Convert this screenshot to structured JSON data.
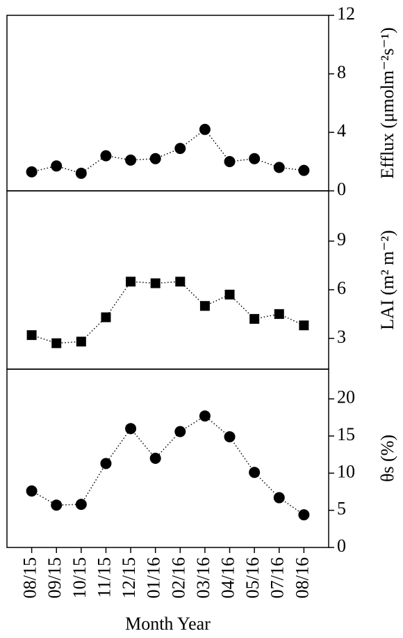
{
  "chart_data": [
    {
      "type": "line",
      "y_label": "Efflux (μmolm⁻²s⁻¹)",
      "marker": "circle",
      "color": "#000000",
      "values": [
        1.3,
        1.7,
        1.2,
        2.4,
        2.1,
        2.2,
        2.9,
        4.2,
        2.0,
        2.2,
        1.6,
        1.4
      ],
      "ylim": [
        0,
        12
      ],
      "yticks": [
        0,
        4,
        8,
        12
      ]
    },
    {
      "type": "line",
      "y_label": "LAI (m² m⁻²)",
      "marker": "square",
      "color": "#000000",
      "values": [
        3.2,
        2.7,
        2.8,
        4.3,
        6.5,
        6.4,
        6.5,
        5.0,
        5.7,
        4.2,
        4.5,
        3.8
      ],
      "ylim": [
        1.1,
        12.1
      ],
      "yticks": [
        3,
        6,
        9
      ]
    },
    {
      "type": "line",
      "y_label": "θs (%)",
      "marker": "circle",
      "color": "#000000",
      "x_label": "Month Year",
      "categories": [
        "08/15",
        "09/15",
        "10/15",
        "11/15",
        "12/15",
        "01/16",
        "02/16",
        "03/16",
        "04/16",
        "05/16",
        "07/16",
        "08/16"
      ],
      "values": [
        7.6,
        5.7,
        5.8,
        11.3,
        16.0,
        12.0,
        15.6,
        17.7,
        14.9,
        10.1,
        6.7,
        4.4
      ],
      "ylim": [
        0,
        24
      ],
      "yticks": [
        0,
        5,
        10,
        15,
        20
      ]
    }
  ]
}
